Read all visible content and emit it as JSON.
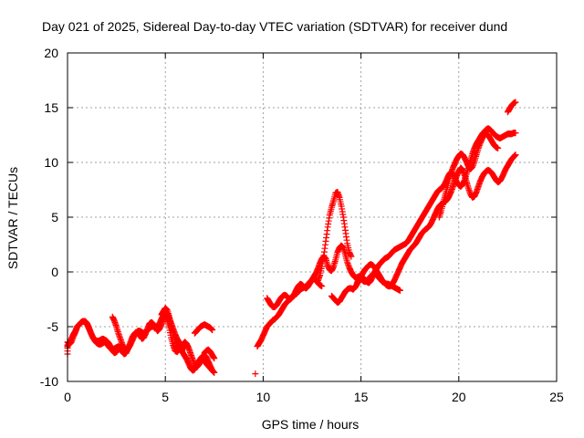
{
  "chart_data": {
    "type": "scatter",
    "title": "Day 021 of 2025, Sidereal Day-to-day VTEC variation (SDTVAR) for receiver dund",
    "xlabel": "GPS time / hours",
    "ylabel": "SDTVAR / TECUs",
    "xlim": [
      0,
      25
    ],
    "ylim": [
      -10,
      20
    ],
    "xticks": [
      0,
      5,
      10,
      15,
      20,
      25
    ],
    "yticks": [
      -10,
      -5,
      0,
      5,
      10,
      15,
      20
    ],
    "xtick_labels": [
      "0",
      "5",
      "10",
      "15",
      "20",
      "25"
    ],
    "ytick_labels": [
      "-10",
      "-5",
      "0",
      "5",
      "10",
      "15",
      "20"
    ],
    "grid": true,
    "marker": "plus",
    "marker_color": "#ff0000",
    "series": [
      {
        "x": [
          0.0,
          0.0,
          0.1,
          0.2,
          0.3,
          0.4,
          0.5,
          0.6,
          0.7,
          0.8,
          0.9,
          1.0,
          1.1,
          1.2,
          1.3,
          1.4,
          1.5,
          1.6,
          1.7,
          1.8,
          1.9,
          2.0,
          2.1,
          2.2,
          2.3,
          2.4,
          2.5,
          2.6,
          2.7,
          2.8,
          2.9,
          3.0,
          3.1,
          3.2,
          3.3,
          3.4,
          3.5,
          3.6,
          3.7,
          3.8,
          3.9,
          4.0,
          4.1,
          4.2,
          4.3,
          4.4,
          4.5,
          4.6,
          4.7,
          4.8,
          4.9,
          5.0,
          5.1,
          5.2,
          5.3,
          5.4,
          5.5,
          5.6,
          5.7,
          5.8,
          5.9,
          6.0,
          6.1,
          6.2,
          6.3,
          6.4,
          6.5,
          6.6,
          6.7,
          6.8,
          6.9,
          7.0,
          7.1,
          7.2,
          7.3,
          7.4
        ],
        "y": [
          -7.5,
          -6.4,
          -6.6,
          -6.4,
          -5.9,
          -5.5,
          -5.0,
          -4.8,
          -4.6,
          -4.5,
          -4.5,
          -4.7,
          -5.1,
          -5.6,
          -6.0,
          -6.3,
          -6.5,
          -6.6,
          -6.6,
          -6.5,
          -6.4,
          -6.5,
          -6.8,
          -7.0,
          -7.1,
          -7.0,
          -6.9,
          -6.8,
          -7.0,
          -7.3,
          -7.5,
          -7.4,
          -7.0,
          -6.5,
          -6.0,
          -5.7,
          -5.5,
          -5.6,
          -5.8,
          -6.1,
          -6.0,
          -5.6,
          -5.1,
          -4.7,
          -4.6,
          -4.8,
          -5.1,
          -5.4,
          -5.2,
          -4.8,
          -4.3,
          -4.1,
          -4.4,
          -5.1,
          -6.0,
          -6.7,
          -7.2,
          -7.3,
          -7.1,
          -6.8,
          -6.6,
          -6.4,
          -6.6,
          -7.0,
          -7.5,
          -8.0,
          -8.5,
          -8.7,
          -8.5,
          -8.2,
          -8.0,
          -8.1,
          -8.4,
          -8.6,
          -8.8,
          -9.0
        ]
      },
      {
        "x": [
          0.0,
          0.1,
          0.2,
          0.3,
          0.4,
          0.5,
          0.6,
          0.7,
          0.8,
          0.9,
          1.0,
          1.1,
          1.2,
          1.3,
          1.4,
          1.5,
          1.6,
          1.7,
          1.8,
          1.9,
          2.0,
          2.1,
          2.2,
          2.3,
          2.4,
          2.5,
          2.6,
          2.7,
          2.8,
          2.9,
          3.0,
          3.1,
          3.2,
          3.3,
          3.4,
          3.5,
          3.6,
          3.7,
          3.8,
          3.9,
          4.0,
          4.1,
          4.2,
          4.3,
          4.4,
          4.5,
          4.6,
          4.7,
          4.8,
          4.9,
          5.0,
          5.1,
          5.2,
          5.3,
          5.4,
          5.5,
          5.6,
          5.7,
          5.8,
          5.9,
          6.0
        ],
        "y": [
          -6.8,
          -6.5,
          -6.1,
          -5.7,
          -5.4,
          -5.0,
          -4.8,
          -4.6,
          -4.5,
          -4.6,
          -4.8,
          -5.2,
          -5.6,
          -6.0,
          -6.2,
          -6.3,
          -6.3,
          -6.2,
          -6.1,
          -6.2,
          -6.3,
          -6.5,
          -6.8,
          -7.2,
          -7.4,
          -7.3,
          -7.1,
          -6.8,
          -6.7,
          -6.9,
          -7.1,
          -7.0,
          -6.7,
          -6.3,
          -5.9,
          -5.6,
          -5.4,
          -5.4,
          -5.5,
          -5.6,
          -5.5,
          -5.3,
          -5.1,
          -5.0,
          -5.0,
          -5.1,
          -5.0,
          -4.7,
          -4.3,
          -3.9,
          -3.6,
          -3.8,
          -4.2,
          -4.7,
          -5.2,
          -5.7,
          -6.1,
          -6.4,
          -6.6,
          -6.8,
          -7.0
        ]
      },
      {
        "x": [
          2.3,
          2.4,
          2.5,
          2.6,
          2.7,
          2.8
        ],
        "y": [
          -4.1,
          -4.5,
          -5.0,
          -5.6,
          -6.1,
          -6.6
        ]
      },
      {
        "x": [
          4.8,
          4.9,
          5.0,
          5.1,
          5.2,
          5.3,
          5.4,
          5.5,
          5.6,
          5.7,
          5.8,
          5.9,
          6.0,
          6.1,
          6.2,
          6.3,
          6.4,
          6.5,
          6.6,
          6.7,
          6.8,
          6.9,
          7.0,
          7.1,
          7.2,
          7.3,
          7.4,
          7.5
        ],
        "y": [
          -3.9,
          -3.6,
          -3.3,
          -3.5,
          -4.1,
          -4.9,
          -5.6,
          -6.2,
          -6.7,
          -7.0,
          -7.2,
          -7.4,
          -7.7,
          -8.0,
          -8.4,
          -8.8,
          -9.0,
          -8.9,
          -8.6,
          -8.2,
          -7.9,
          -7.7,
          -7.6,
          -7.8,
          -8.2,
          -8.6,
          -9.0,
          -9.2
        ]
      },
      {
        "x": [
          6.5,
          6.6,
          6.7,
          6.8,
          6.9,
          7.0,
          7.1,
          7.2,
          7.3,
          7.4
        ],
        "y": [
          -5.6,
          -5.4,
          -5.2,
          -5.0,
          -4.9,
          -4.8,
          -4.9,
          -5.0,
          -5.1,
          -5.3
        ]
      },
      {
        "x": [
          7.0,
          7.1,
          7.2,
          7.3,
          7.4,
          7.5
        ],
        "y": [
          -7.4,
          -7.2,
          -7.1,
          -7.3,
          -7.6,
          -7.9
        ]
      },
      {
        "x": [
          9.6
        ],
        "y": [
          -9.3
        ]
      },
      {
        "x": [
          9.7,
          9.8,
          9.9,
          10.0,
          10.1,
          10.2,
          10.3,
          10.4,
          10.5,
          10.6,
          10.7,
          10.8,
          10.9,
          11.0,
          11.1,
          11.2,
          11.3,
          11.4,
          11.5,
          11.6,
          11.7,
          11.8,
          11.9,
          12.0,
          12.1,
          12.2,
          12.3,
          12.4,
          12.5,
          12.6,
          12.7,
          12.8,
          12.9,
          13.0,
          13.1,
          13.2,
          13.3,
          13.4,
          13.5,
          13.6,
          13.7,
          13.8,
          13.9,
          14.0,
          14.1,
          14.2,
          14.3,
          14.4,
          14.5,
          14.6,
          14.7,
          14.8,
          14.9,
          15.0,
          15.1,
          15.2,
          15.3,
          15.4,
          15.5,
          15.6,
          15.7,
          15.8,
          15.9,
          16.0,
          16.1,
          16.2,
          16.3,
          16.4,
          16.5,
          16.6,
          16.7,
          16.8,
          16.9,
          17.0
        ],
        "y": [
          -6.8,
          -6.5,
          -6.2,
          -5.8,
          -5.4,
          -5.0,
          -4.8,
          -4.6,
          -4.4,
          -4.3,
          -4.1,
          -3.9,
          -3.6,
          -3.3,
          -3.0,
          -2.8,
          -2.6,
          -2.4,
          -2.2,
          -2.1,
          -2.0,
          -1.8,
          -1.6,
          -1.5,
          -1.4,
          -1.3,
          -1.1,
          -0.9,
          -0.7,
          -0.4,
          -0.1,
          0.3,
          0.8,
          1.2,
          1.4,
          1.2,
          0.6,
          0.2,
          0.1,
          0.5,
          1.1,
          1.8,
          2.2,
          2.4,
          2.2,
          1.6,
          0.9,
          0.4,
          0.0,
          -0.3,
          -0.5,
          -0.5,
          -0.4,
          -0.6,
          -0.8,
          -0.9,
          -0.8,
          -0.6,
          -0.4,
          -0.2,
          -0.1,
          -0.3,
          -0.5,
          -0.7,
          -0.9,
          -1.0,
          -1.1,
          -1.1,
          -1.2,
          -1.3,
          -1.4,
          -1.5,
          -1.6,
          -1.7
        ]
      },
      {
        "x": [
          10.2,
          10.3,
          10.4,
          10.5,
          10.6,
          10.7,
          10.8,
          10.9,
          11.0,
          11.1,
          11.2,
          11.3,
          11.4,
          11.5,
          11.6,
          11.7,
          11.8,
          11.9,
          12.0,
          12.1,
          12.2,
          12.3,
          12.4,
          12.5,
          12.6,
          12.7,
          12.8,
          12.9,
          13.0
        ],
        "y": [
          -2.4,
          -2.7,
          -3.0,
          -3.2,
          -3.2,
          -3.0,
          -2.7,
          -2.4,
          -2.2,
          -2.1,
          -2.2,
          -2.4,
          -2.5,
          -2.3,
          -2.0,
          -1.6,
          -1.3,
          -1.1,
          -1.2,
          -1.4,
          -1.5,
          -1.3,
          -1.0,
          -0.7,
          -0.6,
          -0.8,
          -1.0,
          -1.2,
          -1.3
        ]
      },
      {
        "x": [
          12.8,
          12.9,
          13.0,
          13.1,
          13.2,
          13.3,
          13.4,
          13.5,
          13.6,
          13.7,
          13.8,
          13.9,
          14.0,
          14.1,
          14.2,
          14.3,
          14.4,
          14.5
        ],
        "y": [
          -0.8,
          -0.3,
          0.5,
          1.5,
          2.8,
          4.1,
          5.2,
          5.9,
          6.5,
          7.2,
          7.3,
          6.8,
          6.0,
          5.0,
          3.8,
          2.6,
          1.8,
          1.4
        ]
      },
      {
        "x": [
          13.5,
          13.6,
          13.7,
          13.8,
          13.9,
          14.0,
          14.1,
          14.2,
          14.3,
          14.4,
          14.5,
          14.6,
          14.7,
          14.8,
          14.9,
          15.0,
          15.1,
          15.2,
          15.3,
          15.4,
          15.5,
          15.6,
          15.7,
          15.8,
          15.9,
          16.0,
          16.1,
          16.2,
          16.3,
          16.4,
          16.5,
          16.6,
          16.7,
          16.8,
          16.9,
          17.0,
          17.1,
          17.2,
          17.3,
          17.4,
          17.5,
          17.6,
          17.7,
          17.8,
          17.9,
          18.0,
          18.1,
          18.2,
          18.3,
          18.4,
          18.5,
          18.6,
          18.7,
          18.8,
          18.9,
          19.0,
          19.1,
          19.2,
          19.3,
          19.4,
          19.5,
          19.6,
          19.7,
          19.8,
          19.9,
          20.0,
          20.1,
          20.2,
          20.3,
          20.4,
          20.5,
          20.6,
          20.7,
          20.8,
          20.9,
          21.0,
          21.1,
          21.2,
          21.3,
          21.4,
          21.5,
          21.6,
          21.7,
          21.8,
          21.9,
          22.0,
          22.1,
          22.2,
          22.3,
          22.4,
          22.5,
          22.6,
          22.7,
          22.8,
          22.9
        ],
        "y": [
          -2.2,
          -2.4,
          -2.6,
          -2.8,
          -2.7,
          -2.4,
          -2.1,
          -1.8,
          -1.6,
          -1.5,
          -1.5,
          -1.6,
          -1.4,
          -1.1,
          -0.8,
          -0.6,
          -0.5,
          -0.7,
          -0.9,
          -1.0,
          -0.8,
          -0.4,
          0.0,
          0.3,
          0.6,
          0.8,
          1.0,
          1.2,
          1.3,
          1.4,
          1.6,
          1.8,
          2.0,
          2.1,
          2.2,
          2.3,
          2.4,
          2.5,
          2.6,
          2.8,
          3.1,
          3.4,
          3.7,
          4.0,
          4.3,
          4.6,
          4.9,
          5.2,
          5.5,
          5.8,
          6.1,
          6.4,
          6.7,
          7.0,
          7.3,
          7.5,
          7.6,
          7.8,
          8.1,
          8.5,
          8.9,
          9.1,
          9.0,
          8.6,
          8.2,
          7.9,
          7.8,
          8.0,
          8.4,
          9.0,
          9.6,
          10.2,
          10.8,
          11.3,
          11.7,
          12.0,
          12.3,
          12.6,
          12.8,
          13.0,
          13.1,
          13.0,
          12.8,
          12.6,
          12.4,
          12.3,
          12.2,
          12.3,
          12.4,
          12.5,
          12.6,
          12.6,
          12.6,
          12.7,
          12.7
        ]
      },
      {
        "x": [
          14.8,
          14.9,
          15.0,
          15.1,
          15.2,
          15.3,
          15.4,
          15.5,
          15.6,
          15.7,
          15.8,
          15.9,
          16.0,
          16.1,
          16.2,
          16.3,
          16.4,
          16.5,
          16.6,
          16.7,
          16.8,
          16.9,
          17.0,
          17.1,
          17.2,
          17.3,
          17.4,
          17.5,
          17.6,
          17.7,
          17.8,
          17.9,
          18.0,
          18.1,
          18.2,
          18.3,
          18.4,
          18.5,
          18.6,
          18.7,
          18.8,
          18.9,
          19.0,
          19.1,
          19.2,
          19.3,
          19.4,
          19.5,
          19.6,
          19.7,
          19.8,
          19.9,
          20.0,
          20.1,
          20.2,
          20.3,
          20.4,
          20.5,
          20.6,
          20.7,
          20.8,
          20.9,
          21.0,
          21.1,
          21.2,
          21.3,
          21.4,
          21.5,
          21.6,
          21.7,
          21.8,
          21.9,
          22.0,
          22.1,
          22.2,
          22.3,
          22.4,
          22.5,
          22.6,
          22.7,
          22.8,
          22.9
        ],
        "y": [
          -1.0,
          -0.7,
          -0.4,
          -0.1,
          0.2,
          0.4,
          0.6,
          0.7,
          0.6,
          0.4,
          0.1,
          -0.2,
          -0.5,
          -0.8,
          -1.0,
          -1.2,
          -1.3,
          -1.3,
          -1.1,
          -0.8,
          -0.4,
          0.0,
          0.4,
          0.8,
          1.1,
          1.4,
          1.7,
          2.0,
          2.2,
          2.4,
          2.6,
          2.9,
          3.2,
          3.5,
          3.7,
          3.9,
          4.0,
          4.2,
          4.5,
          4.9,
          5.3,
          5.7,
          6.0,
          6.2,
          6.3,
          6.4,
          6.6,
          6.9,
          7.3,
          7.8,
          8.3,
          8.8,
          9.2,
          9.5,
          9.3,
          8.8,
          8.2,
          7.6,
          7.1,
          6.8,
          6.9,
          7.3,
          7.8,
          8.3,
          8.7,
          9.0,
          9.2,
          9.3,
          9.2,
          9.0,
          8.7,
          8.4,
          8.2,
          8.3,
          8.6,
          9.0,
          9.4,
          9.7,
          10.0,
          10.3,
          10.5,
          10.7
        ]
      },
      {
        "x": [
          19.0,
          19.1,
          19.2,
          19.3,
          19.4,
          19.5,
          19.6,
          19.7,
          19.8,
          19.9,
          20.0,
          20.1,
          20.2,
          20.3,
          20.4,
          20.5,
          20.6,
          20.7,
          20.8,
          20.9,
          21.0,
          21.1,
          21.2,
          21.3,
          21.4,
          21.5,
          21.6,
          21.7,
          21.8,
          21.9,
          22.0
        ],
        "y": [
          5.0,
          5.6,
          6.3,
          7.0,
          7.7,
          8.4,
          9.0,
          9.5,
          9.9,
          10.3,
          10.6,
          10.8,
          10.7,
          10.4,
          10.0,
          9.6,
          9.4,
          9.6,
          10.1,
          10.7,
          11.3,
          11.8,
          12.2,
          12.5,
          12.6,
          12.5,
          12.2,
          11.9,
          11.6,
          11.4,
          11.3
        ]
      },
      {
        "x": [
          22.5,
          22.6,
          22.7,
          22.8,
          22.9
        ],
        "y": [
          14.6,
          14.9,
          15.2,
          15.4,
          15.5
        ]
      }
    ]
  }
}
